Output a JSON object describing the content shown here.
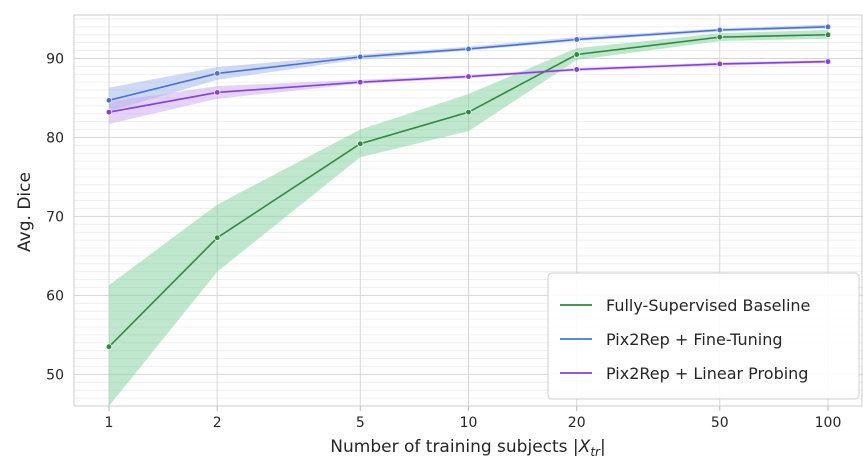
{
  "chart_data": {
    "type": "line",
    "xlabel_main": "Number of training subjects |",
    "xlabel_symbol": "X",
    "xlabel_sub": "tr",
    "xlabel_end": "|",
    "ylabel": "Avg. Dice",
    "x": [
      1,
      2,
      5,
      10,
      20,
      50,
      100
    ],
    "x_tick_labels": [
      "1",
      "2",
      "5",
      "10",
      "20",
      "50",
      "100"
    ],
    "x_scale": "log",
    "y_ticks": [
      50,
      60,
      70,
      80,
      90
    ],
    "y_tick_labels": [
      "50",
      "60",
      "70",
      "80",
      "90"
    ],
    "ylim": [
      46,
      95.5
    ],
    "grid": true,
    "legend_position": "lower-right",
    "series": [
      {
        "name": "Fully-Supervised Baseline",
        "color": "#2e8b3a",
        "band_color": "#7fcf9c",
        "values": [
          53.5,
          67.3,
          79.2,
          83.2,
          90.5,
          92.7,
          93.0
        ],
        "lower": [
          46.0,
          63.0,
          77.5,
          80.8,
          89.8,
          92.2,
          92.5
        ],
        "upper": [
          61.3,
          71.5,
          81.0,
          85.5,
          91.3,
          93.2,
          93.6
        ]
      },
      {
        "name": "Pix2Rep + Fine-Tuning",
        "color": "#4a72d4",
        "band_color": "#9db3ea",
        "values": [
          84.7,
          88.1,
          90.2,
          91.2,
          92.4,
          93.6,
          94.0
        ],
        "lower": [
          83.3,
          87.3,
          89.9,
          91.0,
          92.2,
          93.4,
          93.8
        ],
        "upper": [
          86.3,
          88.9,
          90.5,
          91.5,
          92.7,
          93.8,
          94.3
        ]
      },
      {
        "name": "Pix2Rep + Linear Probing",
        "color": "#8a3ee0",
        "band_color": "#c7a8f0",
        "values": [
          83.2,
          85.7,
          87.0,
          87.7,
          88.6,
          89.3,
          89.6
        ],
        "lower": [
          81.7,
          84.9,
          86.8,
          87.5,
          88.4,
          89.1,
          89.4
        ],
        "upper": [
          84.5,
          86.5,
          87.3,
          87.9,
          88.8,
          89.5,
          89.8
        ]
      }
    ]
  }
}
